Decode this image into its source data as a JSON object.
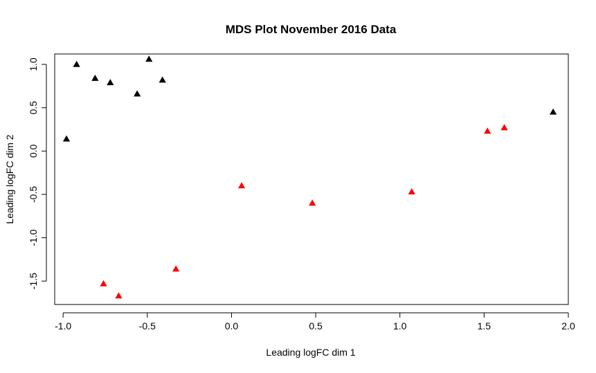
{
  "chart_data": {
    "type": "scatter",
    "title": "MDS Plot November 2016 Data",
    "xlabel": "Leading logFC dim 1",
    "ylabel": "Leading logFC dim 2",
    "xlim": [
      -1.05,
      2.0
    ],
    "ylim": [
      -1.77,
      1.12
    ],
    "xticks": [
      {
        "value": -1.0,
        "label": "-1.0"
      },
      {
        "value": -0.5,
        "label": "-0.5"
      },
      {
        "value": 0.0,
        "label": "0.0"
      },
      {
        "value": 0.5,
        "label": "0.5"
      },
      {
        "value": 1.0,
        "label": "1.0"
      },
      {
        "value": 1.5,
        "label": "1.5"
      },
      {
        "value": 2.0,
        "label": "2.0"
      }
    ],
    "yticks": [
      {
        "value": 1.0,
        "label": "1.0"
      },
      {
        "value": 0.5,
        "label": "0.5"
      },
      {
        "value": 0.0,
        "label": "0.0"
      },
      {
        "value": -0.5,
        "label": "-0.5"
      },
      {
        "value": -1.0,
        "label": "-1.0"
      },
      {
        "value": -1.5,
        "label": "-1.5"
      }
    ],
    "grid": false,
    "marker": "triangle",
    "series": [
      {
        "color": "#000000",
        "points": [
          {
            "x": -0.98,
            "y": 0.14
          },
          {
            "x": -0.92,
            "y": 1.0
          },
          {
            "x": -0.81,
            "y": 0.84
          },
          {
            "x": -0.72,
            "y": 0.79
          },
          {
            "x": -0.56,
            "y": 0.66
          },
          {
            "x": -0.49,
            "y": 1.06
          },
          {
            "x": -0.41,
            "y": 0.82
          },
          {
            "x": 1.91,
            "y": 0.45
          }
        ]
      },
      {
        "color": "#ff0000",
        "points": [
          {
            "x": -0.76,
            "y": -1.53
          },
          {
            "x": -0.67,
            "y": -1.67
          },
          {
            "x": -0.33,
            "y": -1.36
          },
          {
            "x": 0.06,
            "y": -0.4
          },
          {
            "x": 0.48,
            "y": -0.6
          },
          {
            "x": 1.07,
            "y": -0.47
          },
          {
            "x": 1.52,
            "y": 0.23
          },
          {
            "x": 1.62,
            "y": 0.27
          }
        ]
      }
    ]
  }
}
